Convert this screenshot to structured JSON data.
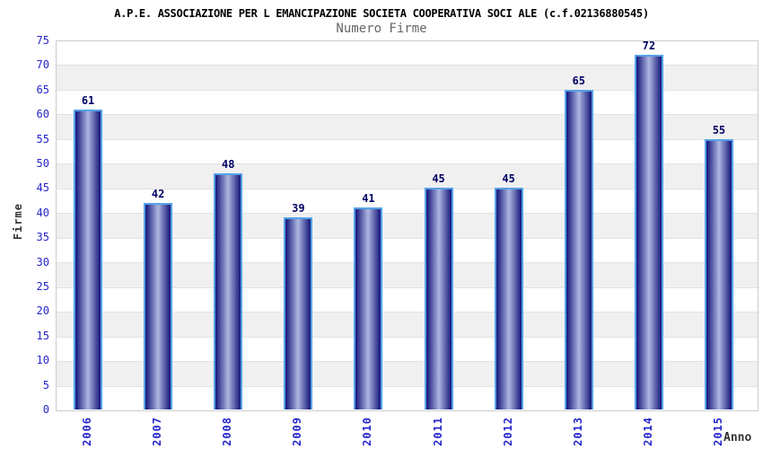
{
  "chart_data": {
    "type": "bar",
    "title": "A.P.E. ASSOCIAZIONE PER L EMANCIPAZIONE SOCIETA COOPERATIVA SOCI ALE (c.f.02136880545)",
    "subtitle": "Numero Firme",
    "categories": [
      "2006",
      "2007",
      "2008",
      "2009",
      "2010",
      "2011",
      "2012",
      "2013",
      "2014",
      "2015"
    ],
    "values": [
      61,
      42,
      48,
      39,
      41,
      45,
      45,
      65,
      72,
      55
    ],
    "xlabel": "Anno",
    "ylabel": "Firme",
    "ylim": [
      0,
      75
    ],
    "ytick_step": 5,
    "yticks": [
      0,
      5,
      10,
      15,
      20,
      25,
      30,
      35,
      40,
      45,
      50,
      55,
      60,
      65,
      70,
      75
    ],
    "legend": null,
    "grid": "horizontal alternating bands every 5 units, light gray lines",
    "colors": {
      "title": "#000000",
      "subtitle": "#666666",
      "tick_label": "#2525CE",
      "value_label": "#000066",
      "axis_title": "#333333",
      "band_gray": "#F0F0F0",
      "band_line": "#E2E2E2",
      "plot_border": "#CCCCCC",
      "bar_gradient_edge": "#14147A",
      "bar_gradient_center": "#ACB7E0",
      "bar_border": "#55A2E8"
    }
  }
}
